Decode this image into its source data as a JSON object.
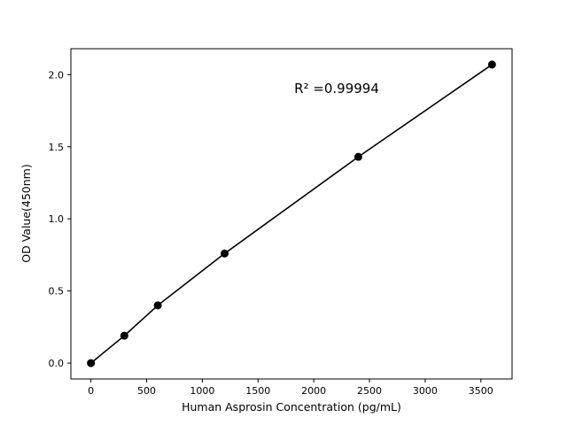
{
  "chart_data": {
    "type": "line",
    "x": [
      0,
      300,
      600,
      1200,
      2400,
      3600
    ],
    "y": [
      0.0,
      0.19,
      0.4,
      0.76,
      1.43,
      2.07
    ],
    "title": "",
    "xlabel": "Human Asprosin Concentration (pg/mL)",
    "ylabel": "OD Value(450nm)",
    "xlim": [
      -180,
      3780
    ],
    "ylim": [
      -0.11,
      2.18
    ],
    "xticks": [
      0,
      500,
      1000,
      1500,
      2000,
      2500,
      3000,
      3500
    ],
    "yticks": [
      0.0,
      0.5,
      1.0,
      1.5,
      2.0
    ],
    "annotation": "R² =0.99994",
    "grid": false,
    "legend": "none",
    "line_color": "#000000",
    "marker_color": "#000000",
    "marker": "circle",
    "background_color": "#ffffff"
  }
}
